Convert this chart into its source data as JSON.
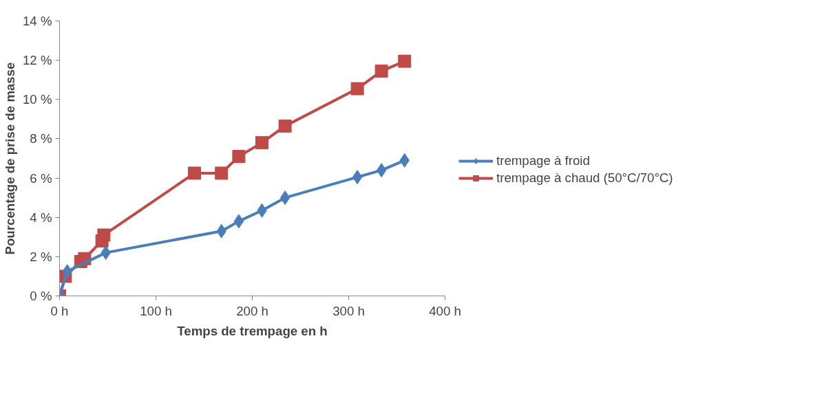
{
  "chart_data": {
    "type": "line",
    "xlabel": "Temps de trempage en h",
    "ylabel": "Pourcentage de prise de masse",
    "xlim": [
      0,
      400
    ],
    "xticks": [
      {
        "value": 0,
        "label": "0 h"
      },
      {
        "value": 100,
        "label": "100 h"
      },
      {
        "value": 200,
        "label": "200 h"
      },
      {
        "value": 300,
        "label": "300 h"
      },
      {
        "value": 400,
        "label": "400 h"
      }
    ],
    "ylim": [
      0,
      14
    ],
    "yticks": [
      {
        "value": 0,
        "label": "0 %"
      },
      {
        "value": 2,
        "label": "2 %"
      },
      {
        "value": 4,
        "label": "4 %"
      },
      {
        "value": 6,
        "label": "6 %"
      },
      {
        "value": 8,
        "label": "8 %"
      },
      {
        "value": 10,
        "label": "10 %"
      },
      {
        "value": 12,
        "label": "12 %"
      },
      {
        "value": 14,
        "label": "14 %"
      }
    ],
    "grid": false,
    "legend": "right",
    "series": [
      {
        "name": "trempage à froid",
        "color": "#4a7ebb",
        "marker": "diamond",
        "x": [
          0,
          8,
          48,
          168,
          186,
          210,
          234,
          309,
          334,
          358
        ],
        "values": [
          0,
          1.25,
          2.2,
          3.3,
          3.8,
          4.35,
          5.0,
          6.05,
          6.4,
          6.9
        ]
      },
      {
        "name": "trempage à chaud (50°C/70°C)",
        "color": "#be4b48",
        "marker": "square",
        "x": [
          0,
          6,
          22,
          26,
          44,
          46,
          140,
          168,
          186,
          210,
          234,
          309,
          334,
          358
        ],
        "values": [
          0,
          1.0,
          1.75,
          1.9,
          2.8,
          3.1,
          6.25,
          6.25,
          7.1,
          7.8,
          8.65,
          10.55,
          11.45,
          11.95
        ]
      }
    ]
  }
}
